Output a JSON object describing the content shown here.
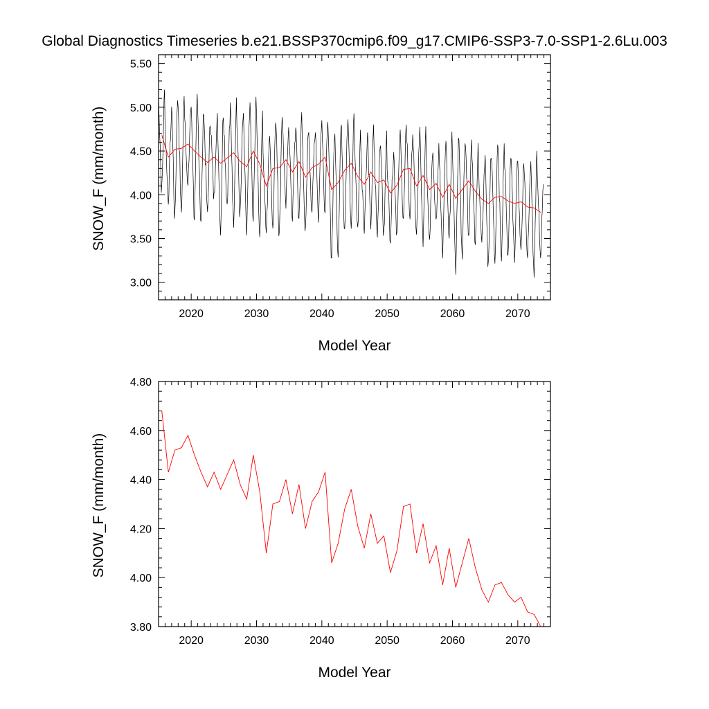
{
  "title": "Global Diagnostics Timeseries b.e21.BSSP370cmip6.f09_g17.CMIP6-SSP3-7.0-SSP1-2.6Lu.003",
  "colors": {
    "monthly": "#000000",
    "annual": "#ff0000",
    "axes": "#000000"
  },
  "chart_data": [
    {
      "type": "line",
      "xlabel": "Model Year",
      "ylabel": "SNOW_F (mm/month)",
      "xlim": [
        2015,
        2075
      ],
      "ylim": [
        2.8,
        5.6
      ],
      "x_ticks": [
        "2020",
        "2030",
        "2040",
        "2050",
        "2060",
        "2070"
      ],
      "y_ticks": [
        "3.00",
        "3.50",
        "4.00",
        "4.50",
        "5.00",
        "5.50"
      ],
      "series": [
        {
          "style": "monthly",
          "color": "#000000",
          "x_start": 2015.0,
          "x_step": 0.0833333,
          "month_offsets": [
            0.48,
            0.32,
            0.05,
            -0.12,
            -0.42,
            -0.65,
            -0.7,
            -0.5,
            -0.22,
            0.1,
            0.4,
            0.55
          ]
        },
        {
          "style": "annual",
          "color": "#ff0000",
          "x": [
            2015.5,
            2016.5,
            2017.5,
            2018.5,
            2019.5,
            2020.5,
            2021.5,
            2022.5,
            2023.5,
            2024.5,
            2025.5,
            2026.5,
            2027.5,
            2028.5,
            2029.5,
            2030.5,
            2031.5,
            2032.5,
            2033.5,
            2034.5,
            2035.5,
            2036.5,
            2037.5,
            2038.5,
            2039.5,
            2040.5,
            2041.5,
            2042.5,
            2043.5,
            2044.5,
            2045.5,
            2046.5,
            2047.5,
            2048.5,
            2049.5,
            2050.5,
            2051.5,
            2052.5,
            2053.5,
            2054.5,
            2055.5,
            2056.5,
            2057.5,
            2058.5,
            2059.5,
            2060.5,
            2061.5,
            2062.5,
            2063.5,
            2064.5,
            2065.5,
            2066.5,
            2067.5,
            2068.5,
            2069.5,
            2070.5,
            2071.5,
            2072.5,
            2073.5
          ],
          "values": [
            4.68,
            4.43,
            4.52,
            4.53,
            4.58,
            4.5,
            4.43,
            4.37,
            4.43,
            4.36,
            4.42,
            4.48,
            4.38,
            4.32,
            4.5,
            4.35,
            4.1,
            4.3,
            4.31,
            4.4,
            4.26,
            4.38,
            4.2,
            4.31,
            4.35,
            4.43,
            4.06,
            4.14,
            4.28,
            4.36,
            4.21,
            4.12,
            4.26,
            4.14,
            4.17,
            4.02,
            4.11,
            4.29,
            4.3,
            4.1,
            4.22,
            4.06,
            4.13,
            3.97,
            4.12,
            3.96,
            4.06,
            4.16,
            4.04,
            3.95,
            3.9,
            3.97,
            3.98,
            3.93,
            3.9,
            3.92,
            3.86,
            3.85,
            3.8
          ]
        }
      ]
    },
    {
      "type": "line",
      "xlabel": "Model Year",
      "ylabel": "SNOW_F (mm/month)",
      "xlim": [
        2015,
        2075
      ],
      "ylim": [
        3.8,
        4.8
      ],
      "x_ticks": [
        "2020",
        "2030",
        "2040",
        "2050",
        "2060",
        "2070"
      ],
      "y_ticks": [
        "3.80",
        "4.00",
        "4.20",
        "4.40",
        "4.60",
        "4.80"
      ],
      "series": [
        {
          "style": "annual",
          "color": "#ff0000",
          "x": [
            2015.5,
            2016.5,
            2017.5,
            2018.5,
            2019.5,
            2020.5,
            2021.5,
            2022.5,
            2023.5,
            2024.5,
            2025.5,
            2026.5,
            2027.5,
            2028.5,
            2029.5,
            2030.5,
            2031.5,
            2032.5,
            2033.5,
            2034.5,
            2035.5,
            2036.5,
            2037.5,
            2038.5,
            2039.5,
            2040.5,
            2041.5,
            2042.5,
            2043.5,
            2044.5,
            2045.5,
            2046.5,
            2047.5,
            2048.5,
            2049.5,
            2050.5,
            2051.5,
            2052.5,
            2053.5,
            2054.5,
            2055.5,
            2056.5,
            2057.5,
            2058.5,
            2059.5,
            2060.5,
            2061.5,
            2062.5,
            2063.5,
            2064.5,
            2065.5,
            2066.5,
            2067.5,
            2068.5,
            2069.5,
            2070.5,
            2071.5,
            2072.5,
            2073.5
          ],
          "values": [
            4.68,
            4.43,
            4.52,
            4.53,
            4.58,
            4.5,
            4.43,
            4.37,
            4.43,
            4.36,
            4.42,
            4.48,
            4.38,
            4.32,
            4.5,
            4.35,
            4.1,
            4.3,
            4.31,
            4.4,
            4.26,
            4.38,
            4.2,
            4.31,
            4.35,
            4.43,
            4.06,
            4.14,
            4.28,
            4.36,
            4.21,
            4.12,
            4.26,
            4.14,
            4.17,
            4.02,
            4.11,
            4.29,
            4.3,
            4.1,
            4.22,
            4.06,
            4.13,
            3.97,
            4.12,
            3.96,
            4.06,
            4.16,
            4.04,
            3.95,
            3.9,
            3.97,
            3.98,
            3.93,
            3.9,
            3.92,
            3.86,
            3.85,
            3.8
          ]
        }
      ]
    }
  ]
}
